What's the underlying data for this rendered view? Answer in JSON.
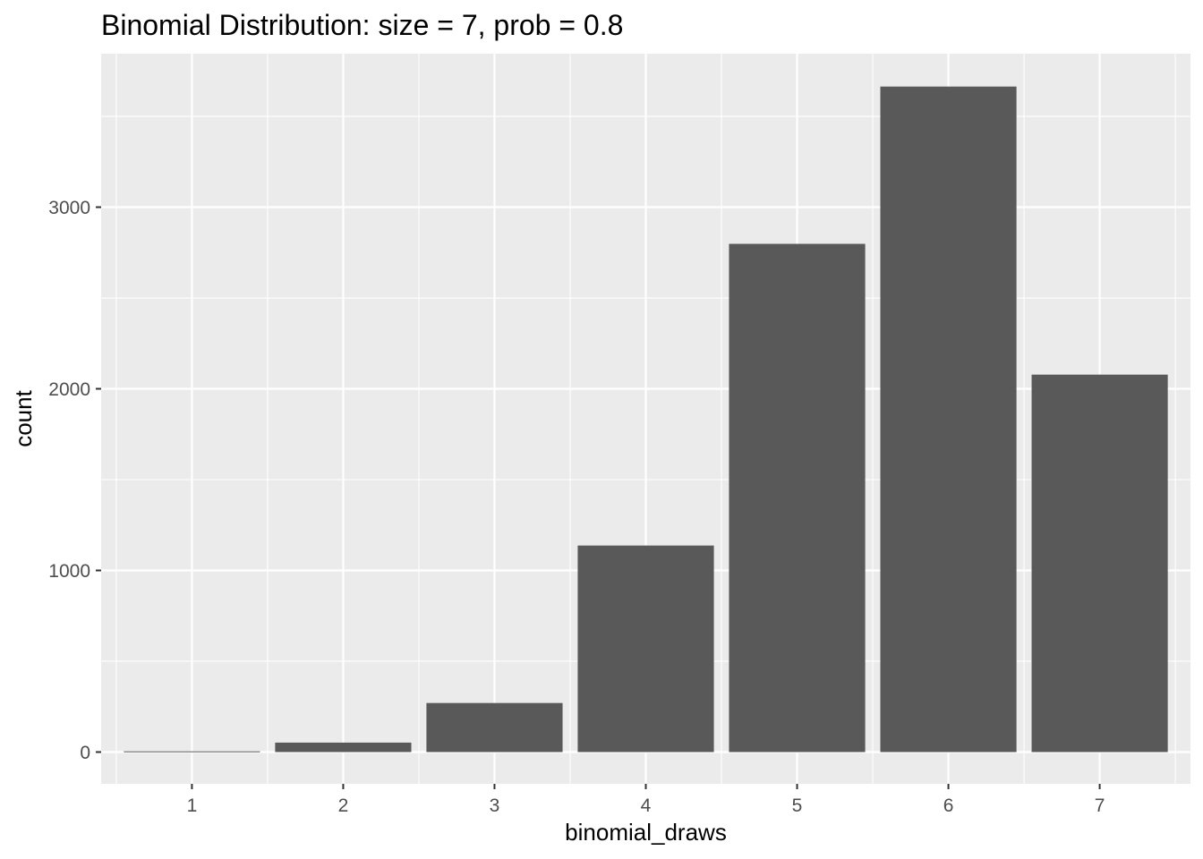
{
  "chart_data": {
    "type": "bar",
    "title": "Binomial Distribution: size = 7, prob = 0.8",
    "xlabel": "binomial_draws",
    "ylabel": "count",
    "categories": [
      "1",
      "2",
      "3",
      "4",
      "5",
      "6",
      "7"
    ],
    "values": [
      4,
      52,
      270,
      1137,
      2798,
      3664,
      2078
    ],
    "ylim": [
      -175,
      3845
    ],
    "yticks": [
      0,
      1000,
      2000,
      3000
    ],
    "ytick_labels": [
      "0",
      "1000",
      "2000",
      "3000"
    ],
    "grid": true,
    "legend": "none",
    "colors": {
      "bar": "#595959",
      "panel": "#ebebeb",
      "grid": "#ffffff",
      "tick_text": "#4d4d4d",
      "text": "#000000"
    }
  }
}
